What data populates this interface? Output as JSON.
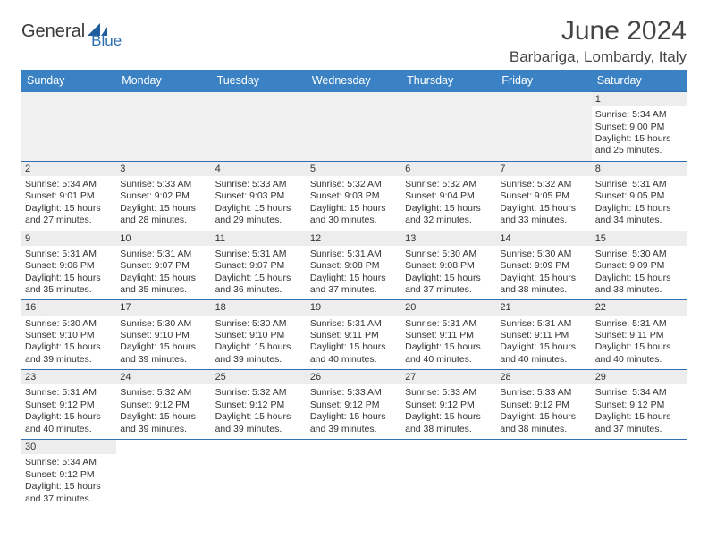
{
  "logo": {
    "part1": "General",
    "part2": "Blue"
  },
  "title": "June 2024",
  "location": "Barbariga, Lombardy, Italy",
  "colors": {
    "header_bg": "#3b82c4",
    "header_fg": "#ffffff",
    "rule": "#2f6fb0",
    "daynum_bg": "#ededed",
    "text": "#333333",
    "logo_gray": "#3a3a3a",
    "logo_blue": "#2f6fb0"
  },
  "columns": [
    "Sunday",
    "Monday",
    "Tuesday",
    "Wednesday",
    "Thursday",
    "Friday",
    "Saturday"
  ],
  "first_weekday_index": 6,
  "days": [
    {
      "n": 1,
      "sunrise": "5:34 AM",
      "sunset": "9:00 PM",
      "dl_h": 15,
      "dl_m": 25
    },
    {
      "n": 2,
      "sunrise": "5:34 AM",
      "sunset": "9:01 PM",
      "dl_h": 15,
      "dl_m": 27
    },
    {
      "n": 3,
      "sunrise": "5:33 AM",
      "sunset": "9:02 PM",
      "dl_h": 15,
      "dl_m": 28
    },
    {
      "n": 4,
      "sunrise": "5:33 AM",
      "sunset": "9:03 PM",
      "dl_h": 15,
      "dl_m": 29
    },
    {
      "n": 5,
      "sunrise": "5:32 AM",
      "sunset": "9:03 PM",
      "dl_h": 15,
      "dl_m": 30
    },
    {
      "n": 6,
      "sunrise": "5:32 AM",
      "sunset": "9:04 PM",
      "dl_h": 15,
      "dl_m": 32
    },
    {
      "n": 7,
      "sunrise": "5:32 AM",
      "sunset": "9:05 PM",
      "dl_h": 15,
      "dl_m": 33
    },
    {
      "n": 8,
      "sunrise": "5:31 AM",
      "sunset": "9:05 PM",
      "dl_h": 15,
      "dl_m": 34
    },
    {
      "n": 9,
      "sunrise": "5:31 AM",
      "sunset": "9:06 PM",
      "dl_h": 15,
      "dl_m": 35
    },
    {
      "n": 10,
      "sunrise": "5:31 AM",
      "sunset": "9:07 PM",
      "dl_h": 15,
      "dl_m": 35
    },
    {
      "n": 11,
      "sunrise": "5:31 AM",
      "sunset": "9:07 PM",
      "dl_h": 15,
      "dl_m": 36
    },
    {
      "n": 12,
      "sunrise": "5:31 AM",
      "sunset": "9:08 PM",
      "dl_h": 15,
      "dl_m": 37
    },
    {
      "n": 13,
      "sunrise": "5:30 AM",
      "sunset": "9:08 PM",
      "dl_h": 15,
      "dl_m": 37
    },
    {
      "n": 14,
      "sunrise": "5:30 AM",
      "sunset": "9:09 PM",
      "dl_h": 15,
      "dl_m": 38
    },
    {
      "n": 15,
      "sunrise": "5:30 AM",
      "sunset": "9:09 PM",
      "dl_h": 15,
      "dl_m": 38
    },
    {
      "n": 16,
      "sunrise": "5:30 AM",
      "sunset": "9:10 PM",
      "dl_h": 15,
      "dl_m": 39
    },
    {
      "n": 17,
      "sunrise": "5:30 AM",
      "sunset": "9:10 PM",
      "dl_h": 15,
      "dl_m": 39
    },
    {
      "n": 18,
      "sunrise": "5:30 AM",
      "sunset": "9:10 PM",
      "dl_h": 15,
      "dl_m": 39
    },
    {
      "n": 19,
      "sunrise": "5:31 AM",
      "sunset": "9:11 PM",
      "dl_h": 15,
      "dl_m": 40
    },
    {
      "n": 20,
      "sunrise": "5:31 AM",
      "sunset": "9:11 PM",
      "dl_h": 15,
      "dl_m": 40
    },
    {
      "n": 21,
      "sunrise": "5:31 AM",
      "sunset": "9:11 PM",
      "dl_h": 15,
      "dl_m": 40
    },
    {
      "n": 22,
      "sunrise": "5:31 AM",
      "sunset": "9:11 PM",
      "dl_h": 15,
      "dl_m": 40
    },
    {
      "n": 23,
      "sunrise": "5:31 AM",
      "sunset": "9:12 PM",
      "dl_h": 15,
      "dl_m": 40
    },
    {
      "n": 24,
      "sunrise": "5:32 AM",
      "sunset": "9:12 PM",
      "dl_h": 15,
      "dl_m": 39
    },
    {
      "n": 25,
      "sunrise": "5:32 AM",
      "sunset": "9:12 PM",
      "dl_h": 15,
      "dl_m": 39
    },
    {
      "n": 26,
      "sunrise": "5:33 AM",
      "sunset": "9:12 PM",
      "dl_h": 15,
      "dl_m": 39
    },
    {
      "n": 27,
      "sunrise": "5:33 AM",
      "sunset": "9:12 PM",
      "dl_h": 15,
      "dl_m": 38
    },
    {
      "n": 28,
      "sunrise": "5:33 AM",
      "sunset": "9:12 PM",
      "dl_h": 15,
      "dl_m": 38
    },
    {
      "n": 29,
      "sunrise": "5:34 AM",
      "sunset": "9:12 PM",
      "dl_h": 15,
      "dl_m": 37
    },
    {
      "n": 30,
      "sunrise": "5:34 AM",
      "sunset": "9:12 PM",
      "dl_h": 15,
      "dl_m": 37
    }
  ],
  "labels": {
    "sunrise": "Sunrise:",
    "sunset": "Sunset:",
    "daylight_prefix": "Daylight:",
    "hours_word": "hours",
    "and_word": "and",
    "minutes_word": "minutes."
  }
}
